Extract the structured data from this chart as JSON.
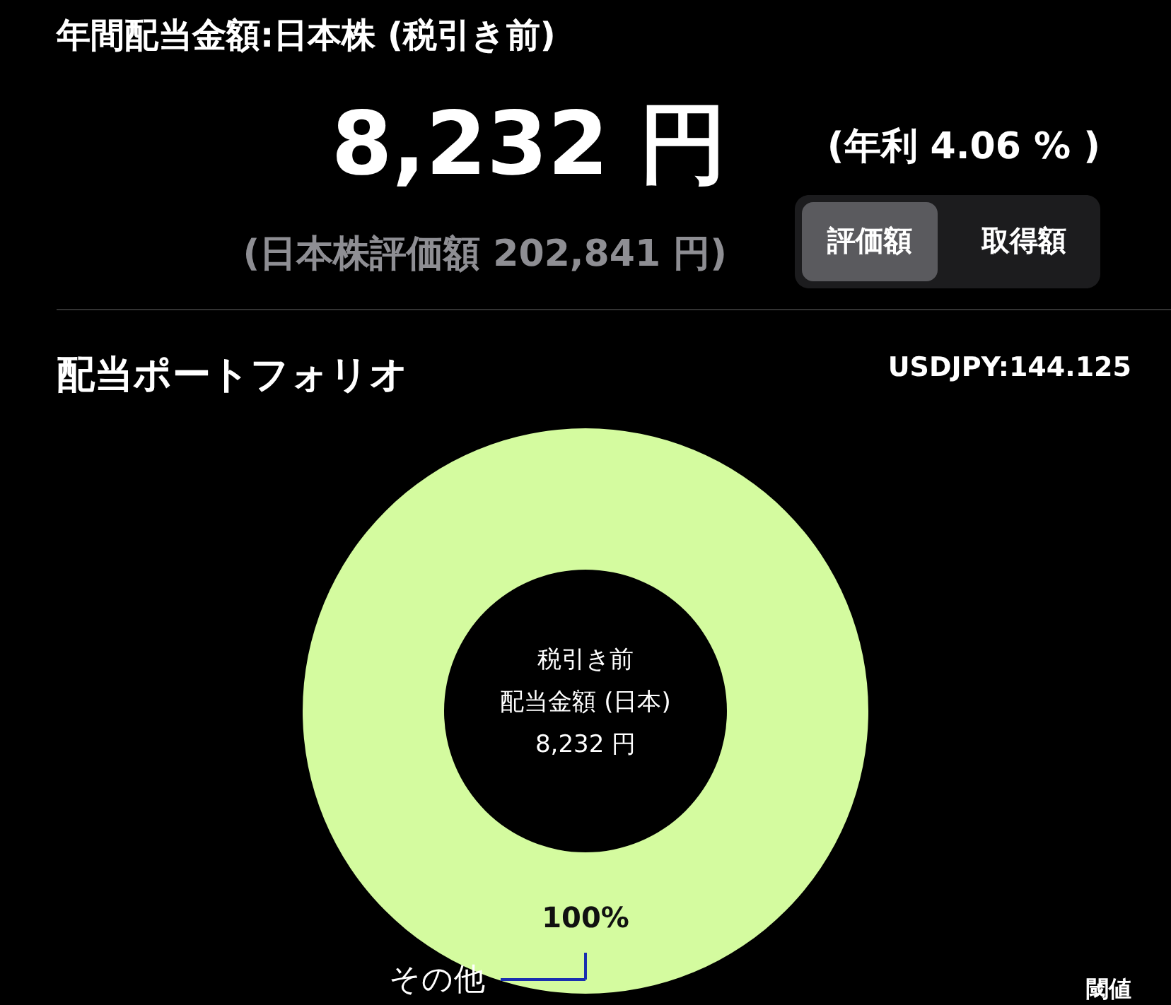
{
  "chart_data": {
    "type": "donut",
    "title": "年間配当金額:日本株 (税引き前)",
    "subtitle": "配当ポートフォリオ",
    "categories": [
      "その他"
    ],
    "values": [
      100
    ],
    "colors": [
      "#d4fb9f"
    ],
    "value_labels": [
      "100%"
    ],
    "annotations": [
      "8,232 円",
      "(年利 4.06 % )",
      "(日本株評価額 202,841 円)",
      "評価額",
      "取得額",
      "USDJPY:144.125",
      "税引き前",
      "配当金額 (日本)",
      "8,232 円",
      "閾値"
    ]
  }
}
